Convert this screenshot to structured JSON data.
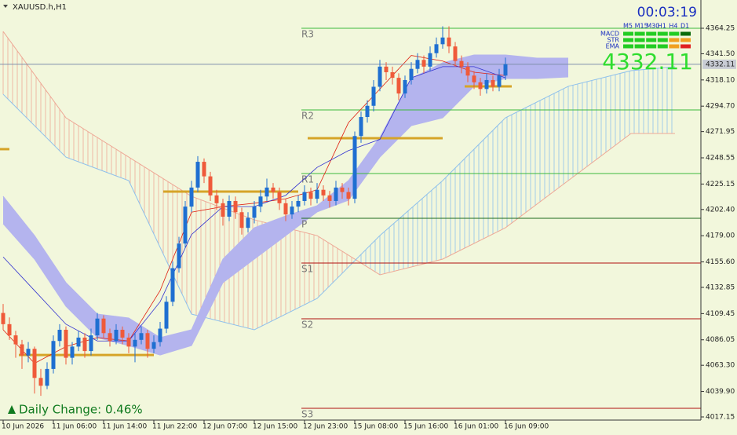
{
  "chart_data": {
    "type": "candlestick",
    "title": "XAUUSD.h,H1",
    "timer": "00:03:19",
    "current_price": 4332.11,
    "daily_change_text": "Daily Change: 0.46%",
    "categories": [
      "10 Jun 2026",
      null,
      null,
      null,
      null,
      null,
      null,
      null,
      "11 Jun 06:00",
      null,
      null,
      null,
      null,
      null,
      null,
      null,
      "11 Jun 14:00",
      null,
      null,
      null,
      null,
      null,
      null,
      null,
      "11 Jun 22:00",
      null,
      null,
      null,
      null,
      null,
      null,
      null,
      "12 Jun 07:00",
      null,
      null,
      null,
      null,
      null,
      null,
      null,
      "12 Jun 15:00",
      null,
      null,
      null,
      null,
      null,
      null,
      null,
      "12 Jun 23:00",
      null,
      null,
      null,
      null,
      null,
      null,
      null,
      "15 Jun 08:00",
      null,
      null,
      null,
      null,
      null,
      null,
      null,
      "15 Jun 16:00",
      null,
      null,
      null,
      null,
      null,
      null,
      null,
      "16 Jun 01:00",
      null,
      null,
      null,
      null,
      null,
      null,
      null,
      "16 Jun 09:00"
    ],
    "open": [
      4110,
      4100,
      4090,
      4082,
      4072,
      4078,
      4052,
      4045,
      4060,
      4085,
      4095,
      4070,
      4080,
      4088,
      4076,
      4090,
      4105,
      4092,
      4085,
      4095,
      4088,
      4080,
      4086,
      4092,
      4078,
      4084,
      4096,
      4120,
      4150,
      4172,
      4205,
      4222,
      4245,
      4232,
      4215,
      4208,
      4196,
      4210,
      4200,
      4186,
      4195,
      4205,
      4214,
      4222,
      4218,
      4208,
      4198,
      4205,
      4210,
      4218,
      4212,
      4220,
      4215,
      4210,
      4222,
      4218,
      4212,
      4268,
      4285,
      4295,
      4312,
      4330,
      4325,
      4320,
      4306,
      4318,
      4328,
      4336,
      4330,
      4342,
      4350,
      4356,
      4348,
      4335,
      4330,
      4322,
      4316,
      4310,
      4318,
      4312,
      4322
    ],
    "high": [
      4118,
      4106,
      4094,
      4086,
      4084,
      4080,
      4060,
      4066,
      4090,
      4100,
      4098,
      4084,
      4094,
      4092,
      4096,
      4110,
      4108,
      4096,
      4100,
      4098,
      4092,
      4092,
      4098,
      4095,
      4090,
      4102,
      4125,
      4156,
      4178,
      4210,
      4228,
      4250,
      4248,
      4236,
      4220,
      4212,
      4215,
      4214,
      4204,
      4200,
      4210,
      4220,
      4230,
      4226,
      4222,
      4212,
      4210,
      4215,
      4224,
      4222,
      4226,
      4224,
      4219,
      4228,
      4226,
      4222,
      4272,
      4290,
      4300,
      4318,
      4336,
      4334,
      4330,
      4324,
      4322,
      4334,
      4342,
      4340,
      4348,
      4356,
      4366,
      4366,
      4352,
      4340,
      4334,
      4326,
      4320,
      4324,
      4322,
      4328,
      4338
    ],
    "low": [
      4095,
      4086,
      4070,
      4060,
      4066,
      4038,
      4036,
      4042,
      4056,
      4080,
      4064,
      4064,
      4076,
      4070,
      4072,
      4086,
      4088,
      4080,
      4082,
      4082,
      4074,
      4066,
      4082,
      4070,
      4074,
      4080,
      4092,
      4116,
      4146,
      4168,
      4200,
      4218,
      4226,
      4210,
      4202,
      4188,
      4192,
      4194,
      4180,
      4182,
      4190,
      4200,
      4210,
      4212,
      4202,
      4192,
      4194,
      4200,
      4206,
      4206,
      4208,
      4210,
      4204,
      4206,
      4212,
      4206,
      4208,
      4262,
      4280,
      4290,
      4308,
      4318,
      4314,
      4300,
      4302,
      4314,
      4324,
      4324,
      4326,
      4338,
      4346,
      4342,
      4330,
      4324,
      4316,
      4310,
      4304,
      4306,
      4308,
      4308,
      4318
    ],
    "close": [
      4100,
      4090,
      4082,
      4072,
      4078,
      4052,
      4045,
      4060,
      4085,
      4095,
      4070,
      4080,
      4088,
      4076,
      4090,
      4105,
      4092,
      4085,
      4095,
      4088,
      4080,
      4086,
      4092,
      4078,
      4084,
      4096,
      4120,
      4150,
      4172,
      4205,
      4222,
      4245,
      4232,
      4215,
      4208,
      4196,
      4210,
      4200,
      4186,
      4195,
      4205,
      4214,
      4222,
      4218,
      4208,
      4198,
      4205,
      4210,
      4218,
      4212,
      4220,
      4215,
      4210,
      4222,
      4218,
      4212,
      4268,
      4285,
      4295,
      4312,
      4330,
      4325,
      4320,
      4306,
      4318,
      4328,
      4336,
      4330,
      4342,
      4350,
      4356,
      4348,
      4335,
      4330,
      4322,
      4316,
      4310,
      4318,
      4312,
      4322,
      4332.11
    ],
    "up_color": "#1f6fd1",
    "down_color": "#ef5a3a",
    "ylim": [
      4014.35,
      4389.49
    ],
    "yticks": [
      4364.25,
      {
        "value": 4341.5,
        "label": "4341.50"
      },
      {
        "value": 4318.1,
        "label": "4318.10"
      },
      {
        "value": 4294.7,
        "label": "4294.70"
      },
      4271.95,
      4248.55,
      4225.15,
      {
        "value": 4202.4,
        "label": "4202.40"
      },
      {
        "value": 4179,
        "label": "4179.00"
      },
      {
        "value": 4155.6,
        "label": "4155.60"
      },
      4132.85,
      4109.45,
      4086.05,
      {
        "value": 4063.3,
        "label": "4063.30"
      },
      {
        "value": 4039.9,
        "label": "4039.90"
      },
      4017.15
    ],
    "pivot_start": 48,
    "pivots": [
      {
        "name": "R3",
        "value": 4364.25,
        "color": "#3cb83c"
      },
      {
        "name": "R2",
        "value": 4291.3,
        "color": "#3cb83c"
      },
      {
        "name": "R1",
        "value": 4234.5,
        "color": "#3cb83c"
      },
      {
        "name": "P",
        "value": 4194.6,
        "color": "#1c6a1c"
      },
      {
        "name": "S1",
        "value": 4154.6,
        "color": "#b01010"
      },
      {
        "name": "S2",
        "value": 4104.8,
        "color": "#b01010"
      },
      {
        "name": "S3",
        "value": 4024.9,
        "color": "#b01010"
      }
    ],
    "zones": [
      {
        "start": 0,
        "end": 1,
        "value": 4256.3
      },
      {
        "start": 3,
        "end": 24,
        "value": 4072.5
      },
      {
        "start": 26,
        "end": 47,
        "value": 4218.4
      },
      {
        "start": 49,
        "end": 70,
        "value": 4266.1
      },
      {
        "start": 74,
        "end": 81,
        "value": 4312.4
      }
    ],
    "zone_color": "#d6a428",
    "cloud": {
      "color": "#b4b4ee",
      "x": [
        0,
        5,
        10,
        15,
        20,
        25,
        30,
        35,
        40,
        45,
        50,
        55,
        60,
        65,
        70,
        75,
        80,
        85,
        90
      ],
      "span_a": [
        4214.2,
        4179.1,
        4137.1,
        4109.0,
        4105.5,
        4088.0,
        4095.0,
        4158.1,
        4186.1,
        4196.7,
        4205.8,
        4228.2,
        4266.8,
        4319.4,
        4333.4,
        4340.4,
        4340.4,
        4337.6,
        4337.6
      ],
      "span_b": [
        4189.7,
        4158.1,
        4116.0,
        4088.0,
        4080.9,
        4072.5,
        4080.9,
        4137.1,
        4158.1,
        4179.1,
        4200.2,
        4210.7,
        4249.2,
        4277.3,
        4284.3,
        4312.4,
        4319.4,
        4319.4,
        4320.8
      ]
    },
    "hatched_cloud": {
      "color_a": "#eea896",
      "color_b": "#8ec0ec",
      "x": [
        0,
        10,
        20,
        30,
        40,
        50,
        60,
        70,
        80,
        90,
        100,
        107
      ],
      "span_a": [
        4361.4,
        4284.3,
        4249.2,
        4214.2,
        4193.2,
        4179.1,
        4144.1,
        4158.1,
        4186.1,
        4228.2,
        4270.3,
        4270.3
      ],
      "span_b": [
        4305.3,
        4249.2,
        4228.2,
        4109.0,
        4095.0,
        4123.0,
        4179.1,
        4228.2,
        4284.3,
        4312.4,
        4326.4,
        4329.9
      ]
    },
    "lines": [
      {
        "color": "#e02010",
        "x": [
          0,
          5,
          10,
          15,
          20,
          25,
          30,
          35,
          40,
          45,
          50,
          55,
          60,
          65,
          70,
          75,
          80
        ],
        "values": [
          4095,
          4065,
          4080,
          4088,
          4085,
          4130,
          4200,
          4205,
          4208,
          4212,
          4220,
          4280,
          4310,
          4340,
          4335,
          4325,
          4322
        ]
      },
      {
        "color": "#3030d0",
        "x": [
          0,
          5,
          10,
          15,
          20,
          25,
          30,
          35,
          40,
          45,
          50,
          55,
          60,
          65,
          70,
          75,
          80
        ],
        "values": [
          4160,
          4130,
          4100,
          4085,
          4085,
          4120,
          4180,
          4205,
          4205,
          4215,
          4240,
          4255,
          4265,
          4320,
          4330,
          4330,
          4320
        ]
      }
    ],
    "panel": {
      "timeframes": [
        "M5",
        "M15",
        "M30",
        "H1",
        "H4",
        "D1"
      ],
      "rows": [
        {
          "name": "MACD",
          "colors": [
            "#22cc22",
            "#22cc22",
            "#22cc22",
            "#22cc22",
            "#22cc22",
            "#0a6a0a"
          ]
        },
        {
          "name": "STR",
          "colors": [
            "#22cc22",
            "#22cc22",
            "#22cc22",
            "#22cc22",
            "#f0a020",
            "#f0a020"
          ]
        },
        {
          "name": "EMA",
          "colors": [
            "#22cc22",
            "#22cc22",
            "#22cc22",
            "#22cc22",
            "#f0a020",
            "#e02020"
          ]
        }
      ]
    }
  }
}
